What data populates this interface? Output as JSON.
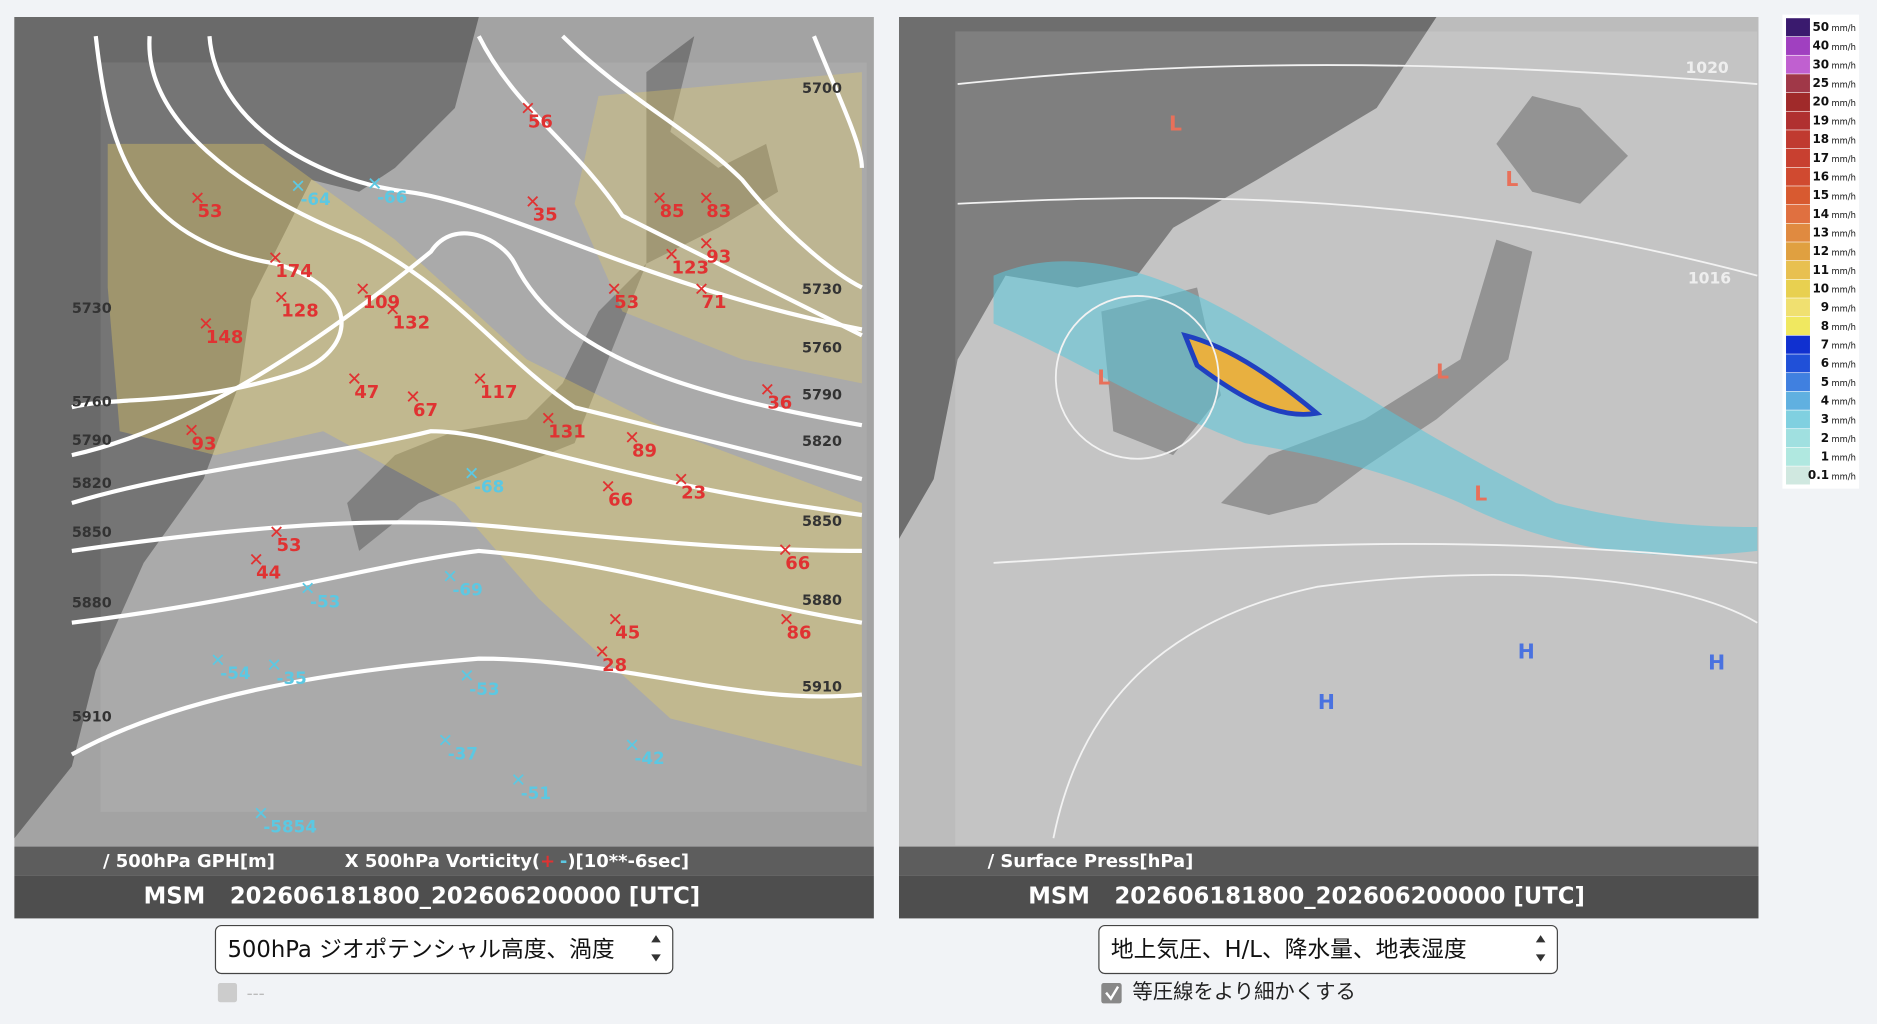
{
  "left_panel": {
    "red_labels": [
      "56",
      "35",
      "53",
      "174",
      "128",
      "148",
      "109",
      "132",
      "85",
      "83",
      "123",
      "93",
      "53",
      "71",
      "47",
      "67",
      "117",
      "131",
      "89",
      "36",
      "93",
      "66",
      "23",
      "53",
      "44",
      "66",
      "86",
      "45",
      "28"
    ],
    "blue_labels": [
      "-64",
      "-66",
      "-68",
      "-69",
      "-53",
      "-54",
      "-35",
      "-53",
      "-37",
      "-42",
      "-51",
      "-5854"
    ],
    "contour_labels": [
      "5700",
      "5730",
      "5760",
      "5790",
      "5820",
      "5850",
      "5880",
      "5910",
      "5730",
      "5760",
      "5790",
      "5820",
      "5850",
      "5880",
      "5910"
    ],
    "caption_gph": "/ 500hPa GPH[m]",
    "caption_vort_start": "X 500hPa Vorticity(",
    "caption_plus": "+",
    "caption_minus": "-",
    "caption_vort_end": ")[10**-6sec]",
    "model": "MSM",
    "timestamp": "202606181800_202606200000 [UTC]",
    "select": "500hPa ジオポテンシャル高度、渦度",
    "checkbox_label": "---"
  },
  "right_panel": {
    "pressure_labels": [
      "1020",
      "1016"
    ],
    "low_labels": [
      "L",
      "L",
      "L",
      "L",
      "L"
    ],
    "high_labels": [
      "H",
      "H",
      "H"
    ],
    "caption": "/ Surface Press[hPa]",
    "model": "MSM",
    "timestamp": "202606181800_202606200000 [UTC]",
    "select": "地上気圧、H/L、降水量、地表湿度",
    "checkbox_label": "等圧線をより細かくする"
  },
  "legend": {
    "unit": "mm/h",
    "levels": [
      {
        "label": "50",
        "color": "#3a1a6e"
      },
      {
        "label": "40",
        "color": "#a040c0"
      },
      {
        "label": "30",
        "color": "#c060d0"
      },
      {
        "label": "25",
        "color": "#a03848"
      },
      {
        "label": "20",
        "color": "#a02a2a"
      },
      {
        "label": "19",
        "color": "#b03030"
      },
      {
        "label": "18",
        "color": "#c03a30"
      },
      {
        "label": "17",
        "color": "#c84030"
      },
      {
        "label": "16",
        "color": "#d04a30"
      },
      {
        "label": "15",
        "color": "#d85a30"
      },
      {
        "label": "14",
        "color": "#e07040"
      },
      {
        "label": "13",
        "color": "#e08a40"
      },
      {
        "label": "12",
        "color": "#e0a040"
      },
      {
        "label": "11",
        "color": "#e8c050"
      },
      {
        "label": "10",
        "color": "#e8d050"
      },
      {
        "label": "9",
        "color": "#f0e070"
      },
      {
        "label": "8",
        "color": "#f0e860"
      },
      {
        "label": "7",
        "color": "#1030d0"
      },
      {
        "label": "6",
        "color": "#2050d8"
      },
      {
        "label": "5",
        "color": "#4080e0"
      },
      {
        "label": "4",
        "color": "#60b0e0"
      },
      {
        "label": "3",
        "color": "#80d0e0"
      },
      {
        "label": "2",
        "color": "#a0e0e0"
      },
      {
        "label": "1",
        "color": "#b0e8e0"
      },
      {
        "label": "0.1",
        "color": "#d0e8e0"
      }
    ]
  }
}
